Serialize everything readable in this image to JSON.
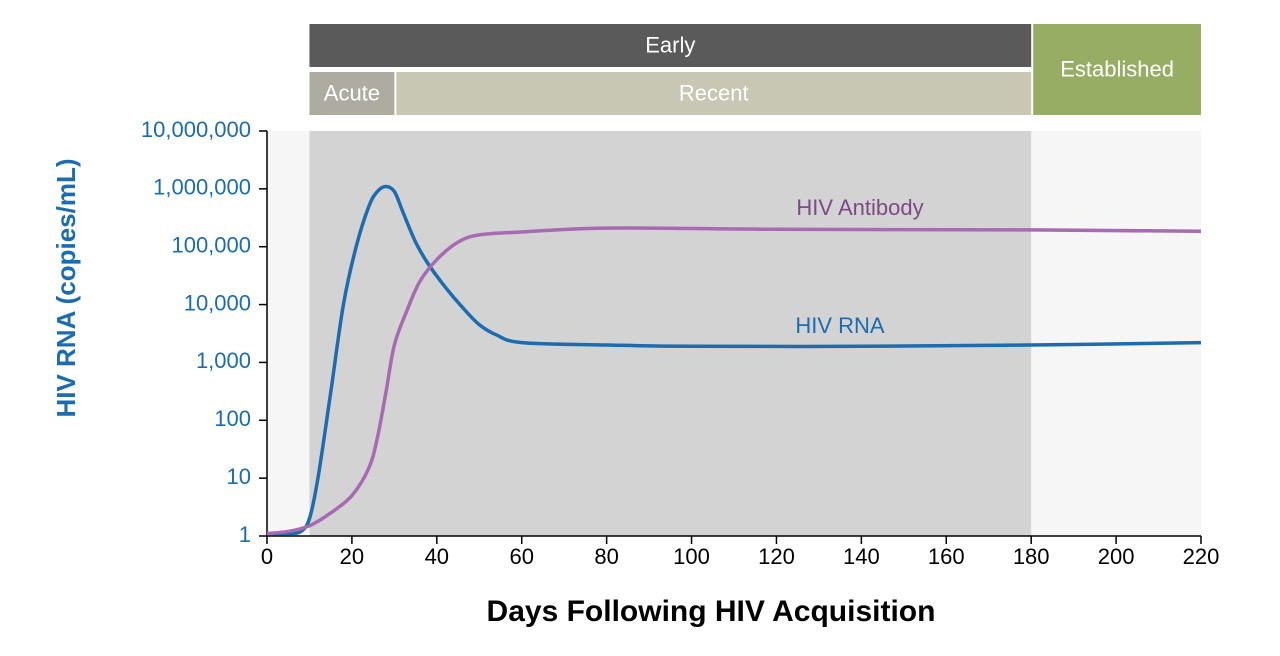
{
  "chart_data": {
    "type": "line",
    "x_label": "Days Following HIV Acquisition",
    "y_label": "HIV RNA (copies/mL)",
    "log_y": true,
    "xlim": [
      0,
      220
    ],
    "xticks": [
      0,
      20,
      40,
      60,
      80,
      100,
      120,
      140,
      160,
      180,
      200,
      220
    ],
    "ylim": [
      1,
      10000000
    ],
    "yticks": [
      1,
      10,
      100,
      {
        "value": 1000,
        "label": "1,000"
      },
      {
        "value": 10000,
        "label": "10,000"
      },
      {
        "value": 100000,
        "label": "100,000"
      },
      {
        "value": 1000000,
        "label": "1,000,000"
      },
      {
        "value": 10000000,
        "label": "10,000,000"
      }
    ],
    "shaded": [
      10,
      180
    ],
    "phases": [
      {
        "label": "Early",
        "start": 10,
        "end": 180,
        "row": 0,
        "color": "#5a5a5a"
      },
      {
        "label": "Established",
        "start": 180,
        "end": 220,
        "row": 2,
        "color": "#97ad63"
      },
      {
        "label": "Acute",
        "start": 10,
        "end": 30,
        "row": 1,
        "color": "#aeaca0"
      },
      {
        "label": "Recent",
        "start": 30,
        "end": 180,
        "row": 1,
        "color": "#c7c7b3"
      }
    ],
    "series": [
      {
        "name": "HIV RNA",
        "color": "#1b6cb0",
        "x": [
          0,
          5,
          8,
          10,
          12,
          15,
          18,
          21,
          24,
          26,
          28,
          30,
          32,
          35,
          38,
          42,
          46,
          50,
          54,
          60,
          80,
          100,
          140,
          180,
          220
        ],
        "values": [
          1.1,
          1.1,
          1.2,
          2,
          10,
          300,
          10000,
          100000,
          500000,
          900000,
          1100000,
          900000,
          400000,
          120000,
          50000,
          20000,
          9000,
          4500,
          3000,
          2200,
          2000,
          1900,
          1900,
          2000,
          2200
        ]
      },
      {
        "name": "HIV Antibody",
        "color": "#a86ab2",
        "x": [
          0,
          5,
          10,
          15,
          20,
          24,
          26,
          28,
          30,
          33,
          36,
          40,
          45,
          50,
          60,
          80,
          120,
          180,
          220
        ],
        "values": [
          1.1,
          1.2,
          1.5,
          2.5,
          5,
          15,
          50,
          300,
          2000,
          8000,
          25000,
          60000,
          120000,
          160000,
          180000,
          210000,
          200000,
          195000,
          185000
        ]
      }
    ]
  }
}
